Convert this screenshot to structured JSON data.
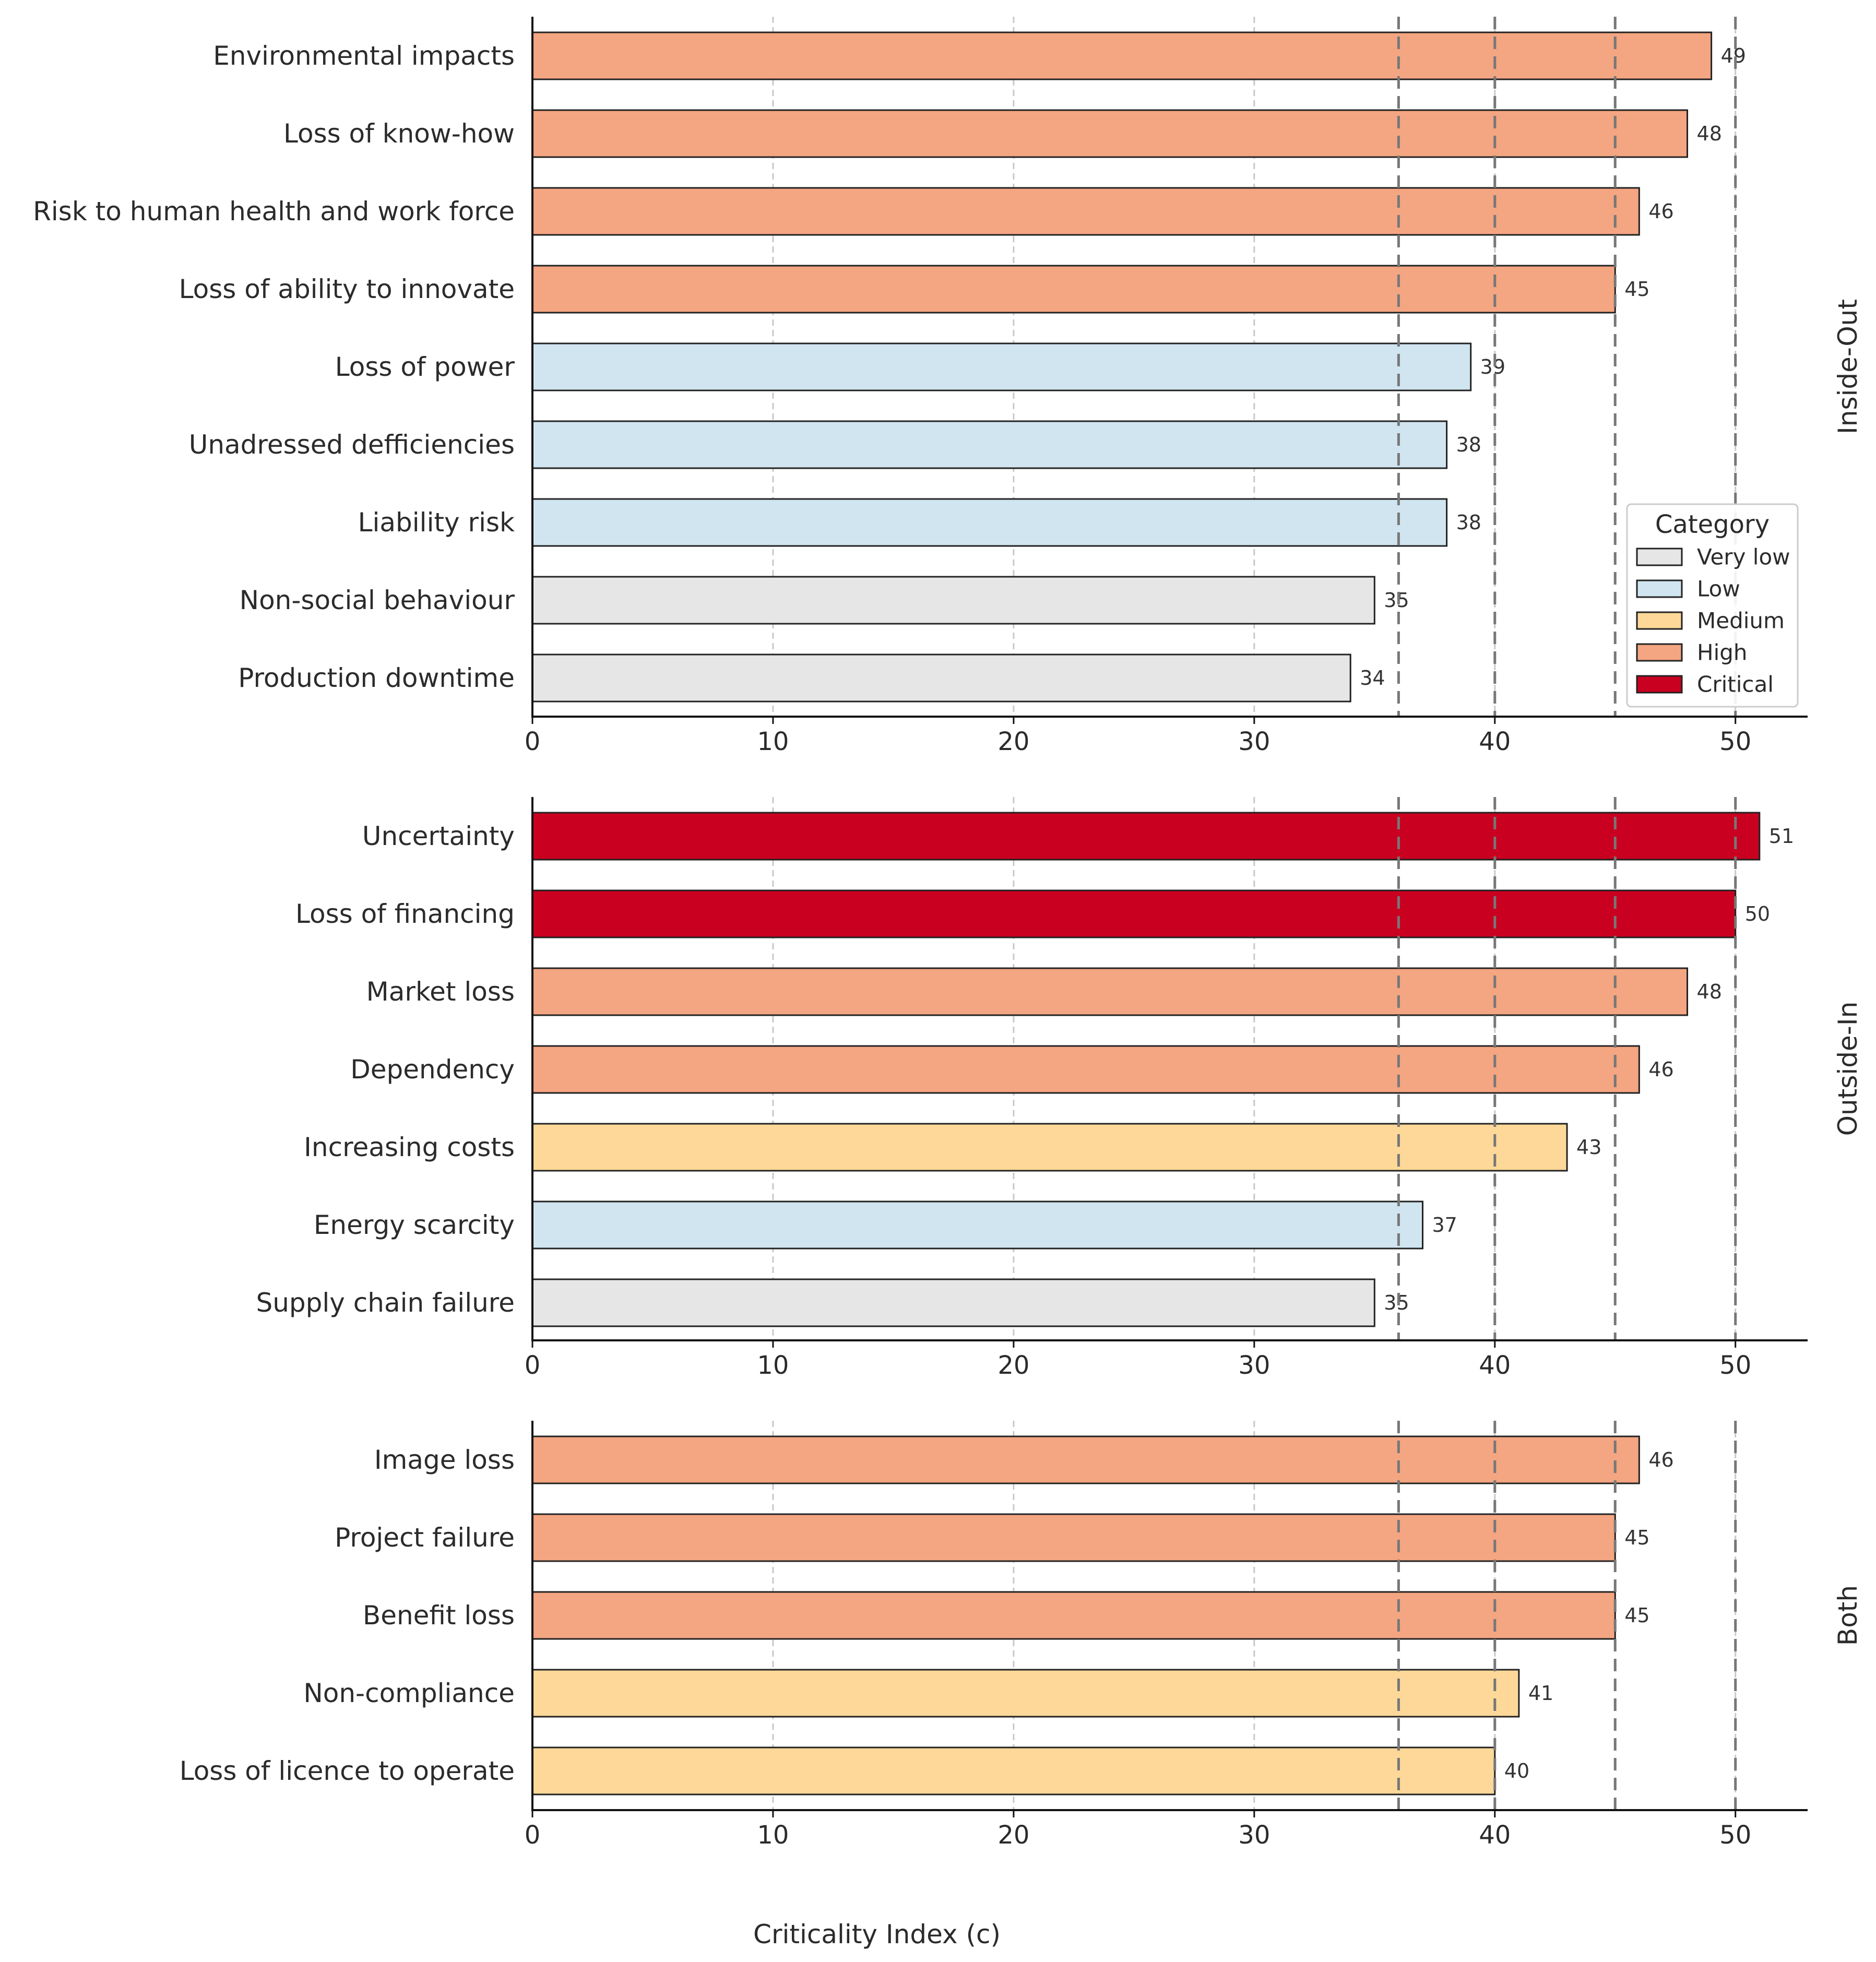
{
  "chart_data": {
    "type": "bar",
    "orientation": "horizontal",
    "xlabel": "Criticality Index (c)",
    "xlim": [
      0,
      53
    ],
    "xticks": [
      0,
      10,
      20,
      30,
      40,
      50
    ],
    "grid": "vertical dotted at ticks",
    "threshold_lines": [
      36,
      40,
      45,
      50
    ],
    "category_colors": {
      "Very low": "#e6e6e6",
      "Low": "#d1e5f0",
      "Medium": "#fdd898",
      "High": "#f4a582",
      "Critical": "#ca0020"
    },
    "legend": {
      "title": "Category",
      "position": "right of top panel",
      "entries": [
        "Very low",
        "Low",
        "Medium",
        "High",
        "Critical"
      ]
    },
    "panels": [
      {
        "name": "Inside-Out",
        "bars": [
          {
            "label": "Environmental impacts",
            "value": 49,
            "category": "High"
          },
          {
            "label": "Loss of know-how",
            "value": 48,
            "category": "High"
          },
          {
            "label": "Risk to human health and work force",
            "value": 46,
            "category": "High"
          },
          {
            "label": "Loss of ability to innovate",
            "value": 45,
            "category": "High"
          },
          {
            "label": "Loss of power",
            "value": 39,
            "category": "Low"
          },
          {
            "label": "Unadressed defficiencies",
            "value": 38,
            "category": "Low"
          },
          {
            "label": "Liability risk",
            "value": 38,
            "category": "Low"
          },
          {
            "label": "Non-social behaviour",
            "value": 35,
            "category": "Very low"
          },
          {
            "label": "Production downtime",
            "value": 34,
            "category": "Very low"
          }
        ]
      },
      {
        "name": "Outside-In",
        "bars": [
          {
            "label": "Uncertainty",
            "value": 51,
            "category": "Critical"
          },
          {
            "label": "Loss of financing",
            "value": 50,
            "category": "Critical"
          },
          {
            "label": "Market loss",
            "value": 48,
            "category": "High"
          },
          {
            "label": "Dependency",
            "value": 46,
            "category": "High"
          },
          {
            "label": "Increasing costs",
            "value": 43,
            "category": "Medium"
          },
          {
            "label": "Energy scarcity",
            "value": 37,
            "category": "Low"
          },
          {
            "label": "Supply chain failure",
            "value": 35,
            "category": "Very low"
          }
        ]
      },
      {
        "name": "Both",
        "bars": [
          {
            "label": "Image loss",
            "value": 46,
            "category": "High"
          },
          {
            "label": "Project failure",
            "value": 45,
            "category": "High"
          },
          {
            "label": "Benefit loss",
            "value": 45,
            "category": "High"
          },
          {
            "label": "Non-compliance",
            "value": 41,
            "category": "Medium"
          },
          {
            "label": "Loss of licence to operate",
            "value": 40,
            "category": "Medium"
          }
        ]
      }
    ]
  }
}
